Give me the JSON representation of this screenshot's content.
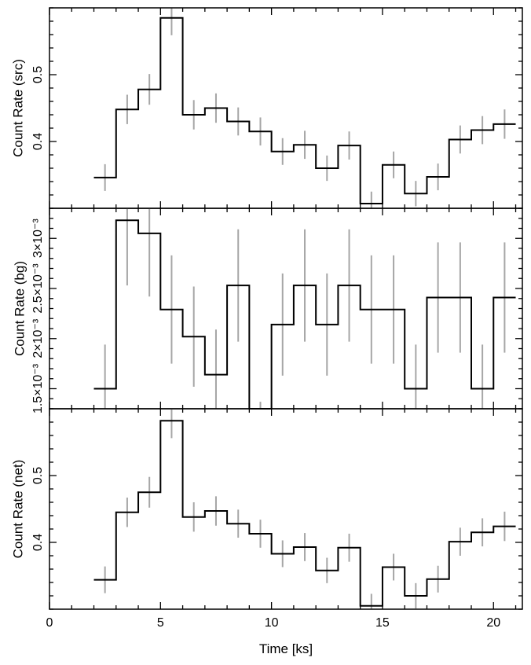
{
  "chart_data": [
    {
      "type": "line",
      "style": "step",
      "ylabel": "Count Rate (src)",
      "ylim": [
        0.3,
        0.6
      ],
      "yticks": [
        0.4,
        0.5
      ],
      "yticklabels": [
        "0.4",
        "0.5"
      ],
      "series": [
        {
          "color": "#000000",
          "x": [
            2.5,
            3.5,
            4.5,
            5.5,
            6.5,
            7.5,
            8.5,
            9.5,
            10.5,
            11.5,
            12.5,
            13.5,
            14.5,
            15.5,
            16.5,
            17.5,
            18.5,
            19.5,
            20.5
          ],
          "y": [
            0.346,
            0.448,
            0.478,
            0.585,
            0.44,
            0.45,
            0.43,
            0.415,
            0.385,
            0.395,
            0.36,
            0.394,
            0.307,
            0.365,
            0.322,
            0.347,
            0.403,
            0.417,
            0.426
          ],
          "yerr": [
            0.02,
            0.022,
            0.023,
            0.026,
            0.022,
            0.022,
            0.021,
            0.021,
            0.02,
            0.021,
            0.019,
            0.021,
            0.018,
            0.02,
            0.019,
            0.02,
            0.021,
            0.021,
            0.022
          ]
        }
      ]
    },
    {
      "type": "line",
      "style": "step",
      "ylabel": "Count Rate (bg)",
      "ylim": [
        0.0013,
        0.0033
      ],
      "yticks": [
        0.0015,
        0.002,
        0.0025,
        0.003
      ],
      "yticklabels": [
        "1.5×10⁻³",
        "2×10⁻³",
        "2.5×10⁻³",
        "3×10⁻³"
      ],
      "series": [
        {
          "color": "#000000",
          "x": [
            2.5,
            3.5,
            4.5,
            5.5,
            6.5,
            7.5,
            8.5,
            9.5,
            10.5,
            11.5,
            12.5,
            13.5,
            14.5,
            15.5,
            16.5,
            17.5,
            18.5,
            19.5,
            20.5
          ],
          "y": [
            0.0015,
            0.00318,
            0.00305,
            0.00229,
            0.00202,
            0.00164,
            0.00253,
            0.00102,
            0.00214,
            0.00253,
            0.00214,
            0.00253,
            0.00229,
            0.00229,
            0.0015,
            0.00241,
            0.00241,
            0.0015,
            0.00241
          ],
          "yerr": [
            0.00044,
            0.00065,
            0.00063,
            0.00054,
            0.0005,
            0.00045,
            0.00056,
            0.00035,
            0.00051,
            0.00056,
            0.00051,
            0.00056,
            0.00054,
            0.00054,
            0.00044,
            0.00055,
            0.00055,
            0.00044,
            0.00055
          ]
        }
      ]
    },
    {
      "type": "line",
      "style": "step",
      "ylabel": "Count Rate (net)",
      "xlabel": "Time [ks]",
      "xlim": [
        0,
        21.3
      ],
      "xticks": [
        0,
        5,
        10,
        15,
        20
      ],
      "xticklabels": [
        "0",
        "5",
        "10",
        "15",
        "20"
      ],
      "ylim": [
        0.3,
        0.6
      ],
      "yticks": [
        0.4,
        0.5
      ],
      "yticklabels": [
        "0.4",
        "0.5"
      ],
      "series": [
        {
          "color": "#000000",
          "x": [
            2.5,
            3.5,
            4.5,
            5.5,
            6.5,
            7.5,
            8.5,
            9.5,
            10.5,
            11.5,
            12.5,
            13.5,
            14.5,
            15.5,
            16.5,
            17.5,
            18.5,
            19.5,
            20.5
          ],
          "y": [
            0.344,
            0.445,
            0.475,
            0.582,
            0.438,
            0.447,
            0.428,
            0.413,
            0.383,
            0.393,
            0.358,
            0.392,
            0.305,
            0.363,
            0.32,
            0.345,
            0.401,
            0.415,
            0.424
          ],
          "yerr": [
            0.02,
            0.022,
            0.023,
            0.026,
            0.022,
            0.022,
            0.021,
            0.021,
            0.02,
            0.021,
            0.019,
            0.021,
            0.018,
            0.02,
            0.019,
            0.02,
            0.021,
            0.021,
            0.022
          ]
        }
      ]
    }
  ]
}
